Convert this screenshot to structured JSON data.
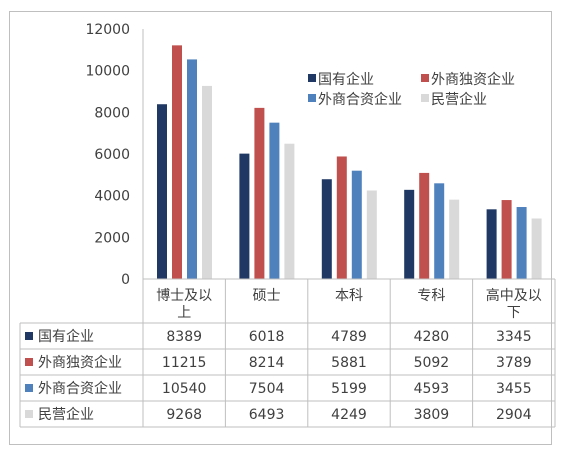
{
  "chart_data": {
    "type": "bar",
    "categories": [
      "博士及以上",
      "硕士",
      "本科",
      "专科",
      "高中及以下"
    ],
    "category_labels": [
      [
        "博士及以",
        "上"
      ],
      [
        "硕士"
      ],
      [
        "本科"
      ],
      [
        "专科"
      ],
      [
        "高中及以",
        "下"
      ]
    ],
    "series": [
      {
        "name": "国有企业",
        "color": "#1f3864",
        "values": [
          8389,
          6018,
          4789,
          4280,
          3345
        ]
      },
      {
        "name": "外商独资企业",
        "color": "#c0504d",
        "values": [
          11215,
          8214,
          5881,
          5092,
          3789
        ]
      },
      {
        "name": "外商合资企业",
        "color": "#4f81bd",
        "values": [
          10540,
          7504,
          5199,
          4593,
          3455
        ]
      },
      {
        "name": "民营企业",
        "color": "#d9d9d9",
        "values": [
          9268,
          6493,
          4249,
          3809,
          2904
        ]
      }
    ],
    "ylim": [
      0,
      12000
    ],
    "yticks": [
      "12000",
      "10000",
      "8000",
      "6000",
      "4000",
      "2000",
      "0"
    ],
    "legend_position": "top-right",
    "data_table": true,
    "grid": false
  }
}
